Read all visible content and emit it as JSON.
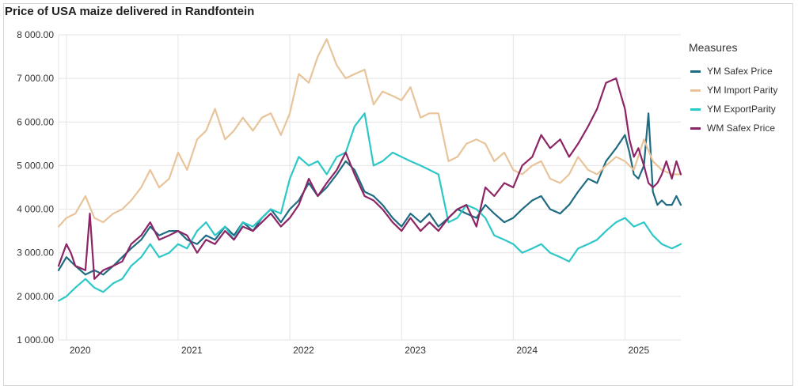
{
  "chart_data": {
    "type": "line",
    "title": "Price of USA maize delivered in Randfontein",
    "xlabel": "",
    "ylabel": "",
    "ylim": [
      1000,
      8000
    ],
    "xlim": [
      2019.93,
      2025.5
    ],
    "y_ticks": [
      {
        "value": 1000,
        "label": "1 000.00"
      },
      {
        "value": 2000,
        "label": "2 000.00"
      },
      {
        "value": 3000,
        "label": "3 000.00"
      },
      {
        "value": 4000,
        "label": "4 000.00"
      },
      {
        "value": 5000,
        "label": "5 000.00"
      },
      {
        "value": 6000,
        "label": "6 000.00"
      },
      {
        "value": 7000,
        "label": "7 000.00"
      },
      {
        "value": 8000,
        "label": "8 000.00"
      }
    ],
    "x_ticks": [
      {
        "value": 2020,
        "label": "2020"
      },
      {
        "value": 2021,
        "label": "2021"
      },
      {
        "value": 2022,
        "label": "2022"
      },
      {
        "value": 2023,
        "label": "2023"
      },
      {
        "value": 2024,
        "label": "2024"
      },
      {
        "value": 2025,
        "label": "2025"
      }
    ],
    "grid": true,
    "legend": {
      "title": "Measures",
      "position": "right"
    },
    "series": [
      {
        "name": "YM Safex Price",
        "color": "#1f6b82",
        "x": [
          2019.93,
          2020.0,
          2020.08,
          2020.17,
          2020.25,
          2020.33,
          2020.42,
          2020.5,
          2020.58,
          2020.67,
          2020.75,
          2020.83,
          2020.92,
          2021.0,
          2021.08,
          2021.17,
          2021.25,
          2021.33,
          2021.42,
          2021.5,
          2021.58,
          2021.67,
          2021.75,
          2021.83,
          2021.92,
          2022.0,
          2022.08,
          2022.17,
          2022.25,
          2022.33,
          2022.42,
          2022.5,
          2022.58,
          2022.67,
          2022.75,
          2022.83,
          2022.92,
          2023.0,
          2023.08,
          2023.17,
          2023.25,
          2023.33,
          2023.42,
          2023.5,
          2023.58,
          2023.67,
          2023.75,
          2023.83,
          2023.92,
          2024.0,
          2024.08,
          2024.17,
          2024.25,
          2024.33,
          2024.42,
          2024.5,
          2024.58,
          2024.67,
          2024.75,
          2024.83,
          2024.92,
          2025.0,
          2025.04,
          2025.08,
          2025.12,
          2025.17,
          2025.21,
          2025.25,
          2025.29,
          2025.33,
          2025.37,
          2025.42,
          2025.46,
          2025.5
        ],
        "values": [
          2600,
          2900,
          2700,
          2500,
          2600,
          2500,
          2700,
          2900,
          3100,
          3300,
          3600,
          3400,
          3500,
          3500,
          3300,
          3200,
          3400,
          3300,
          3600,
          3400,
          3700,
          3500,
          3800,
          4000,
          3700,
          4000,
          4200,
          4600,
          4300,
          4500,
          4800,
          5100,
          4900,
          4400,
          4300,
          4100,
          3800,
          3600,
          3900,
          3700,
          3900,
          3600,
          3800,
          4000,
          3900,
          3800,
          4100,
          3900,
          3700,
          3800,
          4000,
          4200,
          4300,
          4000,
          3900,
          4100,
          4400,
          4700,
          4600,
          5100,
          5400,
          5700,
          5300,
          4800,
          4700,
          5000,
          6200,
          4400,
          4100,
          4200,
          4100,
          4100,
          4300,
          4100
        ]
      },
      {
        "name": "YM Import Parity",
        "color": "#e8c49a",
        "x": [
          2019.93,
          2020.0,
          2020.08,
          2020.17,
          2020.25,
          2020.33,
          2020.42,
          2020.5,
          2020.58,
          2020.67,
          2020.75,
          2020.83,
          2020.92,
          2021.0,
          2021.08,
          2021.17,
          2021.25,
          2021.33,
          2021.42,
          2021.5,
          2021.58,
          2021.67,
          2021.75,
          2021.83,
          2021.92,
          2022.0,
          2022.08,
          2022.17,
          2022.25,
          2022.33,
          2022.42,
          2022.5,
          2022.58,
          2022.67,
          2022.75,
          2022.83,
          2022.92,
          2023.0,
          2023.08,
          2023.17,
          2023.25,
          2023.33,
          2023.42,
          2023.5,
          2023.58,
          2023.67,
          2023.75,
          2023.83,
          2023.92,
          2024.0,
          2024.08,
          2024.17,
          2024.25,
          2024.33,
          2024.42,
          2024.5,
          2024.58,
          2024.67,
          2024.75,
          2024.83,
          2024.92,
          2025.0,
          2025.08,
          2025.17,
          2025.25,
          2025.33,
          2025.42,
          2025.5
        ],
        "values": [
          3600,
          3800,
          3900,
          4300,
          3800,
          3700,
          3900,
          4000,
          4200,
          4500,
          4900,
          4500,
          4700,
          5300,
          4900,
          5600,
          5800,
          6300,
          5600,
          5800,
          6100,
          5800,
          6100,
          6200,
          5700,
          6200,
          7100,
          6900,
          7500,
          7900,
          7300,
          7000,
          7100,
          7200,
          6400,
          6700,
          6600,
          6500,
          6800,
          6100,
          6200,
          6200,
          5100,
          5200,
          5500,
          5600,
          5500,
          5100,
          5300,
          4900,
          4800,
          5000,
          5100,
          4700,
          4600,
          4800,
          5200,
          4900,
          4800,
          5000,
          5200,
          5100,
          4900,
          5600,
          5100,
          4900,
          4800,
          4800
        ]
      },
      {
        "name": "YM ExportParity",
        "color": "#2ec7c7",
        "x": [
          2019.93,
          2020.0,
          2020.08,
          2020.17,
          2020.25,
          2020.33,
          2020.42,
          2020.5,
          2020.58,
          2020.67,
          2020.75,
          2020.83,
          2020.92,
          2021.0,
          2021.08,
          2021.17,
          2021.25,
          2021.33,
          2021.42,
          2021.5,
          2021.58,
          2021.67,
          2021.75,
          2021.83,
          2021.92,
          2022.0,
          2022.08,
          2022.17,
          2022.25,
          2022.33,
          2022.42,
          2022.5,
          2022.58,
          2022.67,
          2022.75,
          2022.83,
          2022.92,
          2023.0,
          2023.08,
          2023.17,
          2023.25,
          2023.33,
          2023.42,
          2023.5,
          2023.58,
          2023.67,
          2023.75,
          2023.83,
          2023.92,
          2024.0,
          2024.08,
          2024.17,
          2024.25,
          2024.33,
          2024.42,
          2024.5,
          2024.58,
          2024.67,
          2024.75,
          2024.83,
          2024.92,
          2025.0,
          2025.08,
          2025.17,
          2025.25,
          2025.33,
          2025.42,
          2025.5
        ],
        "values": [
          1900,
          2000,
          2200,
          2400,
          2200,
          2100,
          2300,
          2400,
          2700,
          2900,
          3200,
          2900,
          3000,
          3200,
          3100,
          3500,
          3700,
          3400,
          3600,
          3300,
          3700,
          3600,
          3800,
          4000,
          3900,
          4700,
          5200,
          5000,
          5100,
          4800,
          5200,
          5300,
          5900,
          6200,
          5000,
          5100,
          5300,
          5200,
          5100,
          5000,
          4900,
          4800,
          3700,
          3800,
          4100,
          4000,
          3800,
          3400,
          3300,
          3200,
          3000,
          3100,
          3200,
          3000,
          2900,
          2800,
          3100,
          3200,
          3300,
          3500,
          3700,
          3800,
          3600,
          3700,
          3400,
          3200,
          3100,
          3200
        ]
      },
      {
        "name": "WM Safex Price",
        "color": "#8c2565",
        "x": [
          2019.93,
          2020.0,
          2020.04,
          2020.08,
          2020.17,
          2020.21,
          2020.25,
          2020.33,
          2020.42,
          2020.5,
          2020.58,
          2020.67,
          2020.75,
          2020.83,
          2020.92,
          2021.0,
          2021.08,
          2021.17,
          2021.25,
          2021.33,
          2021.42,
          2021.5,
          2021.58,
          2021.67,
          2021.75,
          2021.83,
          2021.92,
          2022.0,
          2022.08,
          2022.17,
          2022.25,
          2022.33,
          2022.42,
          2022.5,
          2022.58,
          2022.67,
          2022.75,
          2022.83,
          2022.92,
          2023.0,
          2023.08,
          2023.17,
          2023.25,
          2023.33,
          2023.42,
          2023.5,
          2023.58,
          2023.67,
          2023.75,
          2023.83,
          2023.92,
          2024.0,
          2024.08,
          2024.17,
          2024.25,
          2024.33,
          2024.42,
          2024.5,
          2024.58,
          2024.67,
          2024.75,
          2024.83,
          2024.92,
          2025.0,
          2025.04,
          2025.08,
          2025.12,
          2025.17,
          2025.21,
          2025.25,
          2025.29,
          2025.33,
          2025.37,
          2025.42,
          2025.46,
          2025.5
        ],
        "values": [
          2700,
          3200,
          3000,
          2700,
          2600,
          3900,
          2400,
          2600,
          2700,
          2800,
          3200,
          3400,
          3700,
          3300,
          3400,
          3500,
          3400,
          3000,
          3300,
          3200,
          3500,
          3300,
          3600,
          3500,
          3700,
          3900,
          3600,
          3800,
          4100,
          4700,
          4300,
          4600,
          4900,
          5300,
          4800,
          4300,
          4200,
          4000,
          3700,
          3500,
          3800,
          3500,
          3700,
          3500,
          3800,
          4000,
          4100,
          3600,
          4500,
          4300,
          4600,
          4500,
          5000,
          5200,
          5700,
          5400,
          5600,
          5200,
          5500,
          5900,
          6300,
          6900,
          7000,
          6300,
          5600,
          5200,
          5400,
          5000,
          4600,
          4500,
          4600,
          4800,
          5100,
          4700,
          5100,
          4800
        ]
      }
    ]
  }
}
